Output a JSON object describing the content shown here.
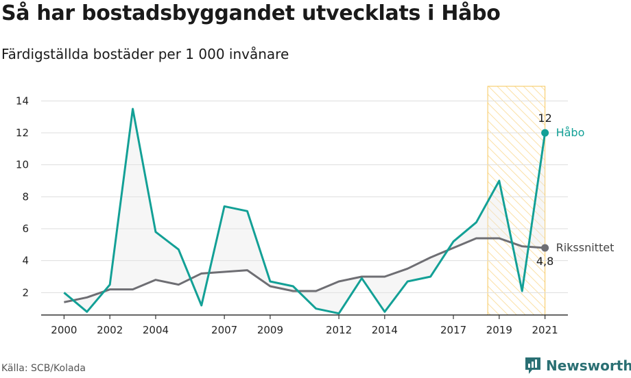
{
  "title": "Så har bostadsbyggandet utvecklats i Håbo",
  "subtitle": "Färdigställda bostäder per 1 000 invånare",
  "source": "Källa: SCB/Kolada",
  "logo": {
    "text": "Newsworthy",
    "icon": "newsworthy-logo-icon"
  },
  "colors": {
    "habo": "#13a096",
    "riket": "#6e6e73",
    "highlight": "#f7c75a",
    "grid": "#dddddd",
    "axis": "#333333"
  },
  "chart_data": {
    "type": "line",
    "x": [
      2000,
      2001,
      2002,
      2003,
      2004,
      2005,
      2006,
      2007,
      2008,
      2009,
      2010,
      2011,
      2012,
      2013,
      2014,
      2015,
      2016,
      2017,
      2018,
      2019,
      2020,
      2021
    ],
    "xticks": [
      2000,
      2002,
      2004,
      2007,
      2009,
      2012,
      2014,
      2017,
      2019,
      2021
    ],
    "xlim": [
      1999.0,
      2022.0
    ],
    "yticks": [
      2,
      4,
      6,
      8,
      10,
      12,
      14
    ],
    "ylim": [
      0.6,
      15.6
    ],
    "grid": true,
    "highlight_range": [
      2018.5,
      2021.0
    ],
    "series": [
      {
        "name": "Håbo",
        "end_value_label": "12",
        "values": [
          2.0,
          0.8,
          2.5,
          13.5,
          5.8,
          4.7,
          1.2,
          7.4,
          7.1,
          2.7,
          2.4,
          1.0,
          0.7,
          2.9,
          0.8,
          2.7,
          3.0,
          5.2,
          6.4,
          9.0,
          2.1,
          12.0
        ]
      },
      {
        "name": "Rikssnittet",
        "end_value_label": "4,8",
        "values": [
          1.4,
          1.7,
          2.2,
          2.2,
          2.8,
          2.5,
          3.2,
          3.3,
          3.4,
          2.4,
          2.1,
          2.1,
          2.7,
          3.0,
          3.0,
          3.5,
          4.2,
          4.8,
          5.4,
          5.4,
          4.9,
          4.8
        ]
      }
    ]
  }
}
